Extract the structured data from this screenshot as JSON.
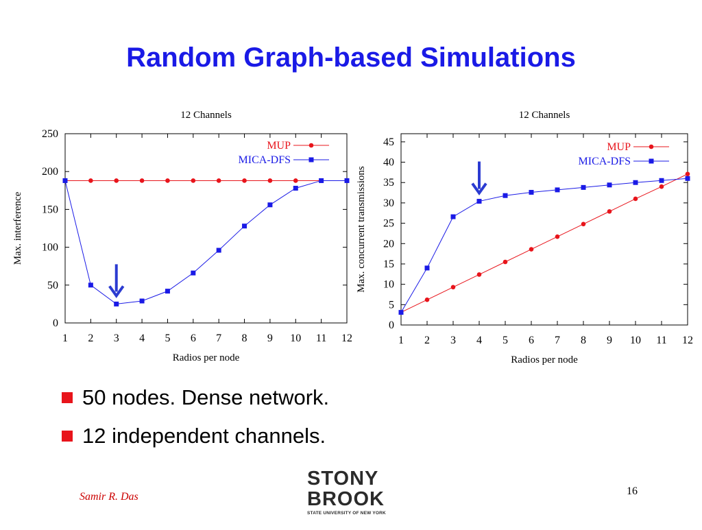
{
  "slide": {
    "title": "Random Graph-based Simulations",
    "bullets": [
      "50 nodes. Dense network.",
      "12 independent channels."
    ],
    "author": "Samir R. Das",
    "page_number": "16",
    "logo": {
      "line1": "STONY",
      "line2": "BROOK",
      "line3": "STATE UNIVERSITY OF NEW YORK"
    },
    "colors": {
      "title": "#1a1ae6",
      "bullet": "#e8141b",
      "author": "#cc0000",
      "mup": "#e8141b",
      "mica": "#1a1ae6",
      "arrow": "#2b3bd1"
    }
  },
  "chart_data": [
    {
      "type": "line",
      "title": "12 Channels",
      "xlabel": "Radios per node",
      "ylabel": "Max. interference",
      "x": [
        1,
        2,
        3,
        4,
        5,
        6,
        7,
        8,
        9,
        10,
        11,
        12
      ],
      "xlim": [
        1,
        12
      ],
      "ylim": [
        0,
        250
      ],
      "yticks": [
        0,
        50,
        100,
        150,
        200,
        250
      ],
      "legend_position": "top-right",
      "grid": false,
      "annotation": {
        "type": "arrow",
        "x": 3
      },
      "series": [
        {
          "name": "MUP",
          "color": "#e8141b",
          "marker": "circle",
          "values": [
            188,
            188,
            188,
            188,
            188,
            188,
            188,
            188,
            188,
            188,
            188,
            188
          ]
        },
        {
          "name": "MICA-DFS",
          "color": "#1a1ae6",
          "marker": "square",
          "values": [
            188,
            50,
            25,
            29,
            42,
            66,
            96,
            128,
            156,
            178,
            188,
            188
          ]
        }
      ]
    },
    {
      "type": "line",
      "title": "12 Channels",
      "xlabel": "Radios per node",
      "ylabel": "Max. concurrent transmissions",
      "x": [
        1,
        2,
        3,
        4,
        5,
        6,
        7,
        8,
        9,
        10,
        11,
        12
      ],
      "xlim": [
        1,
        12
      ],
      "ylim": [
        0,
        47
      ],
      "yticks": [
        0,
        5,
        10,
        15,
        20,
        25,
        30,
        35,
        40,
        45
      ],
      "legend_position": "top-right",
      "grid": false,
      "annotation": {
        "type": "arrow",
        "x": 4
      },
      "series": [
        {
          "name": "MUP",
          "color": "#e8141b",
          "marker": "circle",
          "values": [
            3.1,
            6.2,
            9.3,
            12.4,
            15.5,
            18.6,
            21.7,
            24.8,
            27.9,
            31.0,
            34.0,
            37.1
          ]
        },
        {
          "name": "MICA-DFS",
          "color": "#1a1ae6",
          "marker": "square",
          "values": [
            3.1,
            14,
            26.6,
            30.4,
            31.8,
            32.6,
            33.2,
            33.8,
            34.4,
            35.0,
            35.5,
            36.0
          ]
        }
      ]
    }
  ]
}
